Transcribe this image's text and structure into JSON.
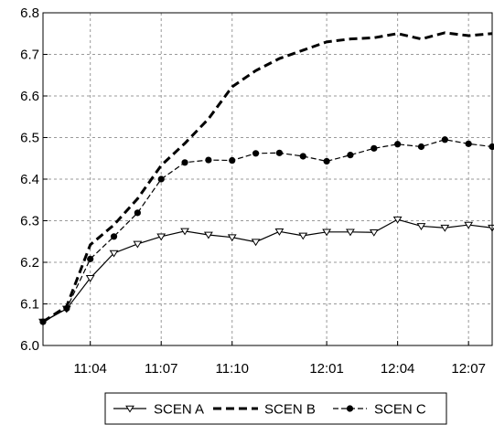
{
  "chart_data": {
    "type": "line",
    "categories": [
      "11:02",
      "11:03",
      "11:04",
      "11:05",
      "11:06",
      "11:07",
      "11:08",
      "11:09",
      "11:10",
      "11:11",
      "11:12",
      "12:00",
      "12:01",
      "12:02",
      "12:03",
      "12:04",
      "12:05",
      "12:06",
      "12:07",
      "12:08"
    ],
    "x_tick_labels": [
      "11:04",
      "11:07",
      "11:10",
      "12:01",
      "12:04",
      "12:07"
    ],
    "ylim": [
      6.0,
      6.8
    ],
    "y_ticks": [
      "6.0",
      "6.1",
      "6.2",
      "6.3",
      "6.4",
      "6.5",
      "6.6",
      "6.7",
      "6.8"
    ],
    "grid": true,
    "legend_position": "bottom",
    "series": [
      {
        "name": "SCEN A",
        "style": "solid-triangle",
        "values": [
          6.057,
          6.088,
          6.162,
          6.222,
          6.244,
          6.262,
          6.275,
          6.266,
          6.26,
          6.249,
          6.274,
          6.264,
          6.273,
          6.273,
          6.272,
          6.303,
          6.287,
          6.283,
          6.29,
          6.283
        ]
      },
      {
        "name": "SCEN B",
        "style": "dashed",
        "values": [
          6.057,
          6.094,
          6.242,
          6.29,
          6.353,
          6.433,
          6.486,
          6.545,
          6.622,
          6.661,
          6.69,
          6.71,
          6.73,
          6.737,
          6.74,
          6.75,
          6.737,
          6.752,
          6.745,
          6.75
        ]
      },
      {
        "name": "SCEN C",
        "style": "dashed-dot",
        "values": [
          6.057,
          6.089,
          6.208,
          6.262,
          6.319,
          6.4,
          6.44,
          6.446,
          6.445,
          6.462,
          6.463,
          6.455,
          6.443,
          6.458,
          6.474,
          6.484,
          6.478,
          6.495,
          6.485,
          6.478
        ]
      }
    ]
  }
}
